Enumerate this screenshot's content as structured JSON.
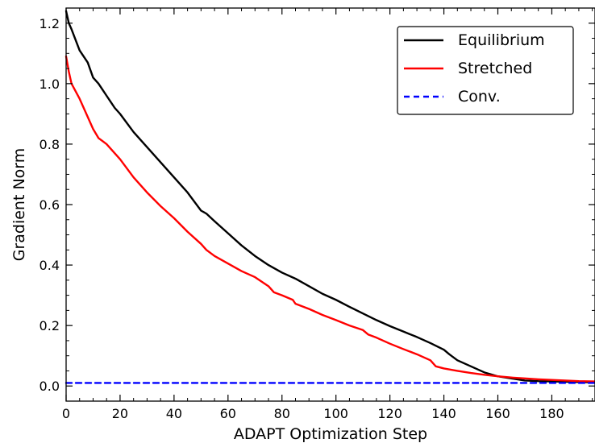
{
  "chart_data": {
    "type": "line",
    "title": "",
    "xlabel": "ADAPT Optimization Step",
    "ylabel": "Gradient Norm",
    "xlim": [
      0,
      196
    ],
    "ylim": [
      -0.05,
      1.25
    ],
    "xticks": [
      0,
      20,
      40,
      60,
      80,
      100,
      120,
      140,
      160,
      180
    ],
    "yticks": [
      0.0,
      0.2,
      0.4,
      0.6,
      0.8,
      1.0,
      1.2
    ],
    "xtick_labels": [
      "0",
      "20",
      "40",
      "60",
      "80",
      "100",
      "120",
      "140",
      "160",
      "180"
    ],
    "ytick_labels": [
      "0.0",
      "0.2",
      "0.4",
      "0.6",
      "0.8",
      "1.0",
      "1.2"
    ],
    "grid": false,
    "legend_position": "top-right",
    "series": [
      {
        "name": "Equilibrium",
        "color": "#000000",
        "style": "solid",
        "x": [
          0,
          1,
          2,
          5,
          8,
          10,
          12,
          15,
          18,
          20,
          25,
          30,
          35,
          40,
          45,
          50,
          52,
          55,
          60,
          65,
          70,
          75,
          80,
          85,
          90,
          95,
          100,
          105,
          110,
          115,
          120,
          125,
          130,
          135,
          140,
          142,
          145,
          150,
          155,
          160,
          165,
          170,
          175,
          180,
          185,
          190,
          196
        ],
        "y": [
          1.24,
          1.2,
          1.18,
          1.11,
          1.07,
          1.02,
          1.0,
          0.96,
          0.92,
          0.9,
          0.84,
          0.79,
          0.74,
          0.69,
          0.64,
          0.58,
          0.57,
          0.545,
          0.505,
          0.465,
          0.43,
          0.4,
          0.375,
          0.355,
          0.33,
          0.305,
          0.285,
          0.262,
          0.24,
          0.218,
          0.198,
          0.18,
          0.162,
          0.142,
          0.12,
          0.105,
          0.085,
          0.065,
          0.045,
          0.032,
          0.025,
          0.018,
          0.016,
          0.015,
          0.014,
          0.013,
          0.012
        ]
      },
      {
        "name": "Stretched",
        "color": "#ff0000",
        "style": "solid",
        "x": [
          0,
          1,
          2,
          5,
          8,
          10,
          12,
          15,
          18,
          20,
          25,
          30,
          35,
          40,
          45,
          50,
          52,
          55,
          60,
          65,
          70,
          75,
          77,
          80,
          84,
          85,
          90,
          95,
          100,
          105,
          110,
          112,
          115,
          120,
          125,
          130,
          135,
          137,
          140,
          145,
          150,
          155,
          160,
          165,
          170,
          175,
          180,
          185,
          190,
          196
        ],
        "y": [
          1.09,
          1.04,
          1.0,
          0.95,
          0.89,
          0.85,
          0.82,
          0.8,
          0.77,
          0.75,
          0.69,
          0.64,
          0.595,
          0.555,
          0.51,
          0.47,
          0.45,
          0.43,
          0.405,
          0.38,
          0.36,
          0.33,
          0.31,
          0.3,
          0.285,
          0.272,
          0.255,
          0.235,
          0.218,
          0.2,
          0.185,
          0.17,
          0.16,
          0.14,
          0.122,
          0.105,
          0.085,
          0.065,
          0.058,
          0.05,
          0.043,
          0.037,
          0.032,
          0.028,
          0.025,
          0.022,
          0.02,
          0.018,
          0.016,
          0.015
        ]
      },
      {
        "name": "Conv.",
        "color": "#0000ff",
        "style": "dashed",
        "x": [
          0,
          196
        ],
        "y": [
          0.01,
          0.01
        ]
      }
    ]
  }
}
